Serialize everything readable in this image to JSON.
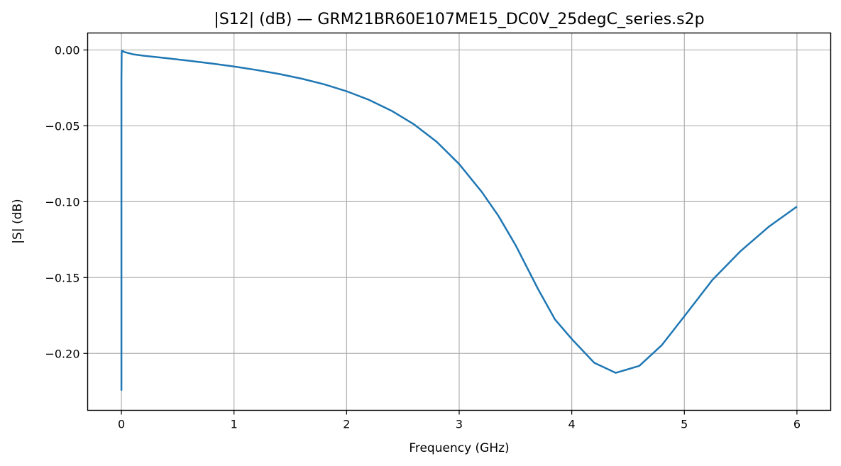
{
  "chart_data": {
    "type": "line",
    "title": "|S12| (dB) — GRM21BR60E107ME15_DC0V_25degC_series.s2p",
    "xlabel": "Frequency (GHz)",
    "ylabel": "|S| (dB)",
    "xlim": [
      -0.3,
      6.3
    ],
    "ylim": [
      -0.2375,
      0.0112
    ],
    "grid": true,
    "line_color": "#1f77b4",
    "x_ticks": [
      0,
      1,
      2,
      3,
      4,
      5,
      6
    ],
    "x_tick_labels": [
      "0",
      "1",
      "2",
      "3",
      "4",
      "5",
      "6"
    ],
    "y_ticks": [
      0.0,
      -0.05,
      -0.1,
      -0.15,
      -0.2
    ],
    "y_tick_labels": [
      "0.00",
      "−0.05",
      "−0.10",
      "−0.15",
      "−0.20"
    ],
    "series": [
      {
        "x": [
          0.0,
          0.0,
          0.002,
          0.005,
          0.01,
          0.02,
          0.05,
          0.1,
          0.2,
          0.4,
          0.6,
          0.8,
          1.0,
          1.2,
          1.4,
          1.6,
          1.8,
          2.0,
          2.2,
          2.4,
          2.6,
          2.8,
          3.0,
          3.2,
          3.35,
          3.5,
          3.7,
          3.85,
          4.0,
          4.2,
          4.39,
          4.6,
          4.8,
          5.0,
          5.25,
          5.5,
          5.75,
          6.0
        ],
        "y": [
          -0.2245,
          -0.02,
          -0.002,
          -0.0005,
          -0.0005,
          -0.0012,
          -0.0018,
          -0.0028,
          -0.0038,
          -0.0054,
          -0.0071,
          -0.0089,
          -0.0109,
          -0.0132,
          -0.0158,
          -0.0189,
          -0.0226,
          -0.0272,
          -0.0329,
          -0.0401,
          -0.0491,
          -0.0605,
          -0.0752,
          -0.0935,
          -0.1095,
          -0.1285,
          -0.1575,
          -0.1775,
          -0.1905,
          -0.2062,
          -0.2128,
          -0.2082,
          -0.1945,
          -0.1755,
          -0.1515,
          -0.1325,
          -0.1165,
          -0.1032
        ]
      }
    ]
  }
}
